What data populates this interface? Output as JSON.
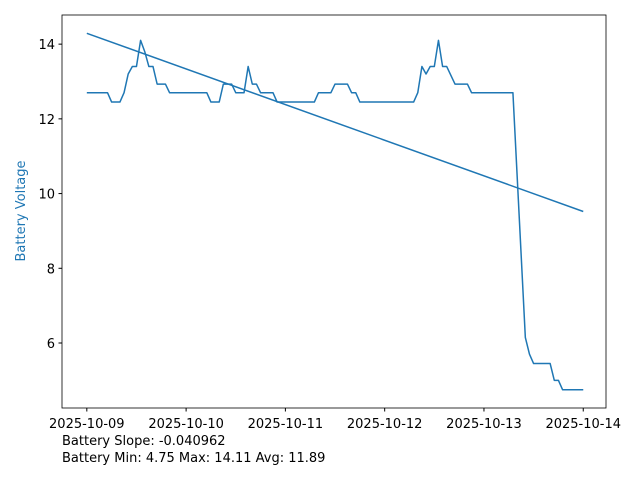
{
  "chart_data": {
    "type": "line",
    "ylabel": "Battery Voltage",
    "ylabel_color": "#1f77b4",
    "annotations": [
      "Battery Slope: -0.040962",
      "Battery Min: 4.75 Max: 14.11 Avg: 11.89"
    ],
    "series": [
      {
        "color": "#1f77b4",
        "x": [
          "2025-10-09 00:00",
          "2025-10-09 05:00",
          "2025-10-09 06:00",
          "2025-10-09 08:00",
          "2025-10-09 09:00",
          "2025-10-09 10:00",
          "2025-10-09 11:00",
          "2025-10-09 12:00",
          "2025-10-09 13:00",
          "2025-10-09 14:00",
          "2025-10-09 15:00",
          "2025-10-09 16:00",
          "2025-10-09 17:00",
          "2025-10-09 19:00",
          "2025-10-09 20:00",
          "2025-10-10 05:00",
          "2025-10-10 06:00",
          "2025-10-10 08:00",
          "2025-10-10 09:00",
          "2025-10-10 11:00",
          "2025-10-10 12:00",
          "2025-10-10 14:00",
          "2025-10-10 15:00",
          "2025-10-10 16:00",
          "2025-10-10 17:00",
          "2025-10-10 18:00",
          "2025-10-10 21:00",
          "2025-10-10 22:00",
          "2025-10-11 07:00",
          "2025-10-11 08:00",
          "2025-10-11 11:00",
          "2025-10-11 12:00",
          "2025-10-11 15:00",
          "2025-10-11 16:00",
          "2025-10-11 17:00",
          "2025-10-11 18:00",
          "2025-10-12 07:00",
          "2025-10-12 08:00",
          "2025-10-12 09:00",
          "2025-10-12 10:00",
          "2025-10-12 11:00",
          "2025-10-12 12:00",
          "2025-10-12 13:00",
          "2025-10-12 14:00",
          "2025-10-12 15:00",
          "2025-10-12 17:00",
          "2025-10-12 20:00",
          "2025-10-12 21:00",
          "2025-10-13 07:00",
          "2025-10-13 10:00",
          "2025-10-13 11:00",
          "2025-10-13 12:00",
          "2025-10-13 16:00",
          "2025-10-13 17:00",
          "2025-10-13 18:00",
          "2025-10-13 19:00",
          "2025-10-14 00:00"
        ],
        "values": [
          12.7,
          12.7,
          12.45,
          12.45,
          12.7,
          13.2,
          13.4,
          13.4,
          14.1,
          13.8,
          13.4,
          13.4,
          12.93,
          12.93,
          12.7,
          12.7,
          12.45,
          12.45,
          12.93,
          12.93,
          12.7,
          12.7,
          13.4,
          12.93,
          12.93,
          12.7,
          12.7,
          12.45,
          12.45,
          12.7,
          12.7,
          12.93,
          12.93,
          12.7,
          12.7,
          12.45,
          12.45,
          12.7,
          13.4,
          13.2,
          13.4,
          13.4,
          14.1,
          13.4,
          13.4,
          12.93,
          12.93,
          12.7,
          12.7,
          6.15,
          5.7,
          5.45,
          5.45,
          5.0,
          5.0,
          4.75,
          4.75
        ]
      },
      {
        "color": "#1f77b4",
        "x": [
          "2025-10-09 00:00",
          "2025-10-14 00:00"
        ],
        "values": [
          14.29,
          9.52
        ]
      }
    ],
    "xlim": [
      "2025-10-08 18:00",
      "2025-10-14 05:30"
    ],
    "xticks": [
      "2025-10-09",
      "2025-10-10",
      "2025-10-11",
      "2025-10-12",
      "2025-10-13",
      "2025-10-14"
    ],
    "ylim": [
      4.26,
      14.78
    ],
    "yticks": [
      6,
      8,
      10,
      12,
      14
    ],
    "grid": false
  }
}
